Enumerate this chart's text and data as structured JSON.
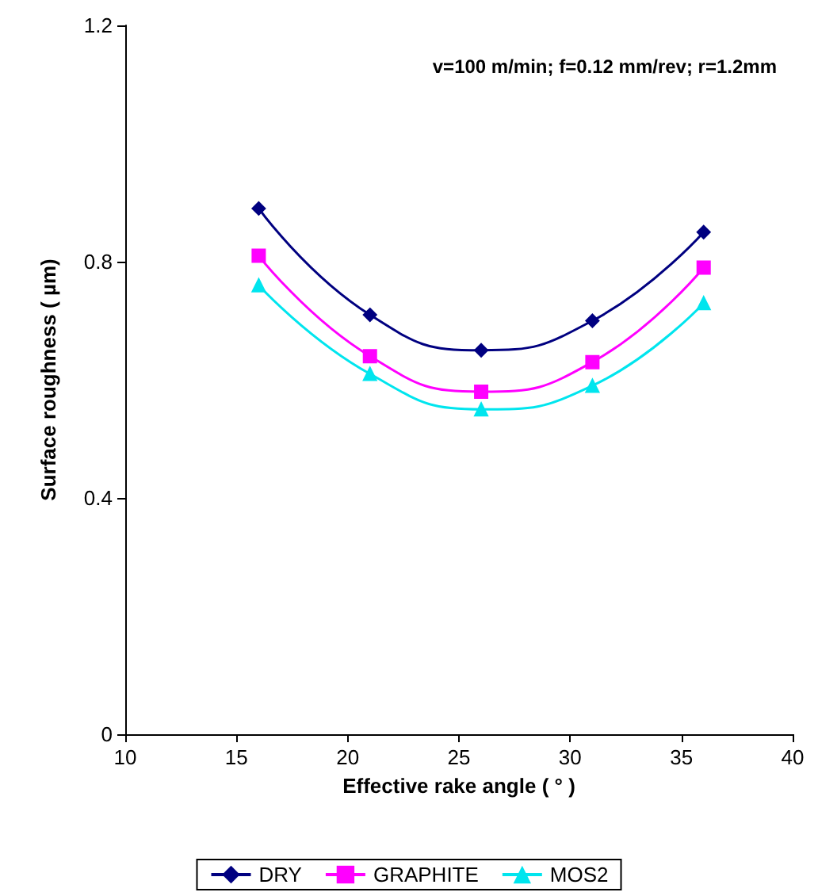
{
  "chart_data": {
    "type": "line",
    "xlabel": "Effective rake angle ( ° )",
    "ylabel": "Surface roughness ( µm)",
    "annotations": [
      "v=100 m/min; f=0.12 mm/rev; r=1.2mm"
    ],
    "x": [
      16,
      21,
      26,
      31,
      36
    ],
    "xlim": [
      10,
      40
    ],
    "xticks": [
      10,
      15,
      20,
      25,
      30,
      35,
      40
    ],
    "ylim": [
      0,
      1.2
    ],
    "yticks": [
      0,
      0.4,
      0.8,
      1.2
    ],
    "grid": false,
    "legend": "bottom",
    "series": [
      {
        "name": "DRY",
        "color": "#000080",
        "marker": "diamond",
        "values": [
          0.89,
          0.71,
          0.65,
          0.7,
          0.85
        ]
      },
      {
        "name": "GRAPHITE",
        "color": "#ff00ff",
        "marker": "square",
        "values": [
          0.81,
          0.64,
          0.58,
          0.63,
          0.79
        ]
      },
      {
        "name": "MOS2",
        "color": "#00e5ee",
        "marker": "triangle",
        "values": [
          0.76,
          0.61,
          0.55,
          0.59,
          0.73
        ]
      }
    ]
  }
}
